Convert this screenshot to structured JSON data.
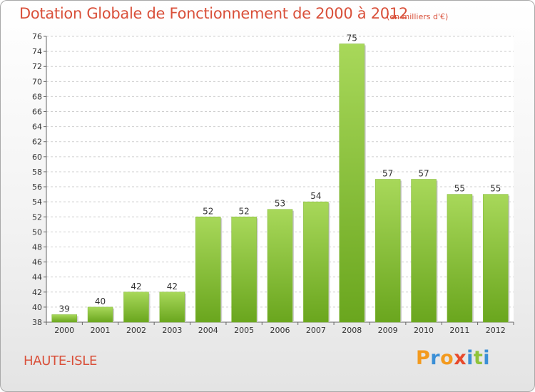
{
  "title": "Dotation Globale de Fonctionnement de 2000 à 2012",
  "unit_note": "(en milliers d'€)",
  "commune": "HAUTE-ISLE",
  "logo": {
    "text": "Proxiti",
    "letters": [
      "P",
      "r",
      "o",
      "x",
      "i",
      "t",
      "i"
    ],
    "colors": [
      "#f39a1e",
      "#3b8fd6",
      "#f39a1e",
      "#e84a2c",
      "#3b8fd6",
      "#8fc33a",
      "#3b8fd6"
    ]
  },
  "colors": {
    "bar_top": "#a8d85a",
    "bar_bottom": "#6aa61e",
    "title": "#d9503a",
    "grid": "#cfcfcf"
  },
  "chart_data": {
    "type": "bar",
    "title": "Dotation Globale de Fonctionnement de 2000 à 2012",
    "subtitle": "(en milliers d'€)",
    "xlabel": "",
    "ylabel": "",
    "categories": [
      "2000",
      "2001",
      "2002",
      "2003",
      "2004",
      "2005",
      "2006",
      "2007",
      "2008",
      "2009",
      "2010",
      "2011",
      "2012"
    ],
    "values": [
      39,
      40,
      42,
      42,
      52,
      52,
      53,
      54,
      75,
      57,
      57,
      55,
      55
    ],
    "value_labels": [
      "39",
      "40",
      "42",
      "42",
      "52",
      "52",
      "53",
      "54",
      "75",
      "57",
      "57",
      "55",
      "55"
    ],
    "ylim": [
      38,
      76
    ],
    "yticks": [
      38,
      40,
      42,
      44,
      46,
      48,
      50,
      52,
      54,
      56,
      58,
      60,
      62,
      64,
      66,
      68,
      70,
      72,
      74,
      76
    ],
    "grid": true,
    "legend": "none"
  }
}
